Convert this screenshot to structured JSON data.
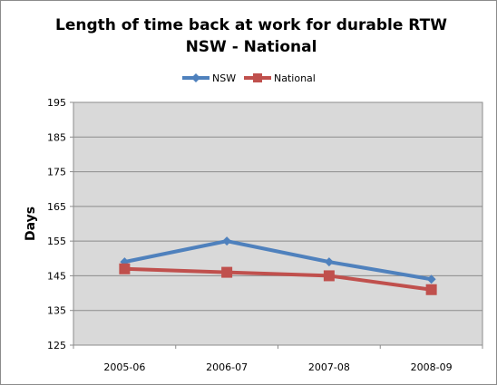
{
  "chart_data": {
    "type": "line",
    "title": "Length of time back at work for durable RTW",
    "subtitle": "NSW - National",
    "xlabel": "",
    "ylabel": "Days",
    "categories": [
      "2005-06",
      "2006-07",
      "2007-08",
      "2008-09"
    ],
    "ylim": [
      125,
      195
    ],
    "yticks": [
      125,
      135,
      145,
      155,
      165,
      175,
      185,
      195
    ],
    "grid": true,
    "legend_position": "top",
    "plot_background": "#d9d9d9",
    "series": [
      {
        "name": "NSW",
        "values": [
          149,
          155,
          149,
          144
        ],
        "color": "#4f81bd",
        "marker": "diamond"
      },
      {
        "name": "National",
        "values": [
          147,
          146,
          145,
          141
        ],
        "color": "#c0504d",
        "marker": "square"
      }
    ]
  }
}
